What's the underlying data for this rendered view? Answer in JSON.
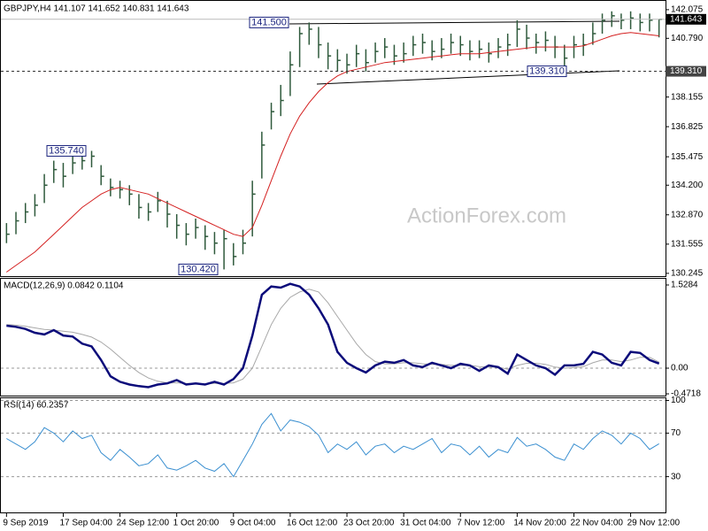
{
  "chart_data": [
    {
      "type": "ohlc",
      "title": "GBPJPY,H4  141.107 141.652 140.831 141.643",
      "watermark": "ActionForex.com",
      "color": "#2f5a3c",
      "high": [
        132.5,
        133.0,
        133.4,
        133.8,
        134.7,
        135.3,
        135.2,
        135.6,
        135.6,
        135.74,
        135.1,
        134.5,
        134.4,
        134.2,
        133.8,
        133.4,
        133.9,
        133.5,
        132.9,
        132.5,
        132.7,
        132.4,
        132.1,
        132.2,
        131.6,
        132.2,
        134.4,
        136.6,
        137.9,
        138.7,
        140.2,
        141.3,
        141.5,
        141.3,
        140.6,
        140.3,
        140.1,
        140.5,
        140.3,
        140.6,
        140.8,
        140.5,
        140.6,
        140.9,
        141.0,
        140.7,
        140.8,
        141.0,
        140.9,
        140.7,
        140.7,
        140.6,
        140.8,
        141.0,
        141.6,
        141.4,
        141.0,
        141.1,
        140.9,
        140.5,
        140.9,
        141.0,
        141.5,
        141.9,
        142.0,
        141.9,
        142.0,
        141.9,
        141.9,
        141.652
      ],
      "low": [
        131.6,
        132.0,
        132.5,
        132.8,
        133.4,
        134.3,
        134.1,
        134.7,
        134.9,
        135.0,
        134.2,
        133.7,
        133.6,
        133.3,
        132.7,
        132.6,
        133.0,
        132.3,
        131.8,
        131.5,
        131.8,
        131.3,
        131.1,
        130.42,
        130.6,
        131.1,
        131.9,
        134.5,
        136.7,
        137.3,
        138.2,
        139.5,
        140.5,
        139.9,
        139.4,
        139.3,
        139.2,
        139.5,
        139.3,
        139.7,
        139.9,
        139.6,
        139.7,
        140.0,
        140.1,
        139.8,
        139.9,
        140.1,
        140.0,
        139.8,
        139.9,
        139.7,
        139.9,
        140.0,
        140.4,
        140.3,
        140.1,
        140.2,
        139.9,
        139.5,
        139.9,
        140.0,
        140.5,
        141.0,
        141.3,
        141.2,
        141.2,
        141.1,
        141.1,
        140.831
      ],
      "close": [
        132.0,
        132.6,
        133.0,
        133.3,
        134.2,
        134.9,
        134.6,
        135.2,
        135.3,
        135.5,
        134.6,
        134.1,
        134.0,
        133.8,
        133.2,
        133.0,
        133.5,
        132.9,
        132.4,
        132.0,
        132.3,
        131.9,
        131.6,
        131.8,
        131.0,
        131.6,
        133.8,
        136.0,
        137.5,
        138.0,
        139.6,
        141.0,
        141.2,
        140.5,
        140.0,
        139.8,
        139.6,
        140.1,
        139.7,
        140.2,
        140.4,
        140.0,
        140.1,
        140.5,
        140.6,
        140.2,
        140.3,
        140.6,
        140.5,
        140.2,
        140.3,
        140.1,
        140.4,
        140.5,
        141.2,
        140.8,
        140.6,
        140.7,
        140.4,
        139.9,
        140.5,
        140.5,
        141.0,
        141.6,
        141.8,
        141.6,
        141.7,
        141.5,
        141.6,
        141.643
      ],
      "overlay": {
        "color": "#d42020",
        "values": [
          130.3,
          130.6,
          130.9,
          131.2,
          131.6,
          132.0,
          132.4,
          132.8,
          133.2,
          133.5,
          133.8,
          134.0,
          134.1,
          134.0,
          133.9,
          133.8,
          133.6,
          133.4,
          133.2,
          133.0,
          132.8,
          132.6,
          132.4,
          132.2,
          132.0,
          131.9,
          132.3,
          133.3,
          134.4,
          135.5,
          136.5,
          137.3,
          137.9,
          138.4,
          138.8,
          139.1,
          139.3,
          139.4,
          139.5,
          139.6,
          139.7,
          139.75,
          139.8,
          139.85,
          139.9,
          139.95,
          140.0,
          140.05,
          140.1,
          140.1,
          140.1,
          140.15,
          140.2,
          140.25,
          140.3,
          140.35,
          140.4,
          140.4,
          140.4,
          140.4,
          140.4,
          140.45,
          140.6,
          140.75,
          140.9,
          141.0,
          141.05,
          141.0,
          140.95,
          140.9
        ]
      },
      "ylim": [
        130.12,
        142.35
      ],
      "yticks": [
        142.075,
        {
          "value": 140.79,
          "label": "140.790"
        },
        138.155,
        136.825,
        135.475,
        {
          "value": 134.2,
          "label": "134.200"
        },
        {
          "value": 132.87,
          "label": "132.870"
        },
        131.555,
        130.245
      ],
      "current": {
        "value": 141.643,
        "label": "141.643"
      },
      "levels": [
        {
          "value": 139.31,
          "label": "139.310"
        }
      ],
      "annotations": [
        {
          "value": 141.5,
          "label": "141.500"
        },
        {
          "value": 135.74,
          "label": "135.740"
        },
        {
          "value": 130.42,
          "label": "130.420"
        },
        {
          "value": 139.31,
          "label": "139.310"
        }
      ]
    },
    {
      "type": "line",
      "title": "MACD(12,26,9) 0.0842 0.1104",
      "series": [
        {
          "color": "#0b0b7a",
          "values": [
            0.78,
            0.76,
            0.72,
            0.65,
            0.62,
            0.7,
            0.6,
            0.58,
            0.45,
            0.4,
            0.15,
            -0.15,
            -0.25,
            -0.3,
            -0.33,
            -0.35,
            -0.3,
            -0.28,
            -0.22,
            -0.3,
            -0.28,
            -0.3,
            -0.25,
            -0.3,
            -0.2,
            0.0,
            0.6,
            1.35,
            1.5,
            1.48,
            1.55,
            1.5,
            1.35,
            1.1,
            0.8,
            0.3,
            0.1,
            0.0,
            -0.08,
            0.05,
            0.12,
            0.1,
            0.15,
            0.05,
            0.02,
            0.1,
            0.05,
            0.0,
            0.08,
            0.05,
            -0.05,
            0.05,
            0.02,
            -0.1,
            0.25,
            0.15,
            0.05,
            0.0,
            -0.12,
            0.05,
            0.05,
            0.08,
            0.3,
            0.25,
            0.1,
            0.05,
            0.3,
            0.28,
            0.15,
            0.0842
          ]
        },
        {
          "color": "#a8a8a8",
          "values": [
            0.8,
            0.79,
            0.77,
            0.74,
            0.71,
            0.7,
            0.68,
            0.66,
            0.62,
            0.57,
            0.48,
            0.35,
            0.2,
            0.05,
            -0.08,
            -0.18,
            -0.24,
            -0.27,
            -0.27,
            -0.28,
            -0.28,
            -0.29,
            -0.28,
            -0.28,
            -0.27,
            -0.2,
            0.0,
            0.4,
            0.8,
            1.1,
            1.3,
            1.4,
            1.45,
            1.4,
            1.2,
            0.95,
            0.7,
            0.45,
            0.25,
            0.12,
            0.08,
            0.08,
            0.1,
            0.1,
            0.08,
            0.07,
            0.07,
            0.05,
            0.05,
            0.05,
            0.03,
            0.02,
            0.02,
            -0.02,
            0.05,
            0.09,
            0.09,
            0.07,
            0.02,
            0.0,
            0.01,
            0.03,
            0.1,
            0.15,
            0.15,
            0.12,
            0.15,
            0.2,
            0.2,
            0.1104
          ]
        }
      ],
      "ylim": [
        -0.504,
        1.626
      ],
      "yticks": [
        1.5284,
        {
          "value": 0,
          "label": "0.00"
        },
        -0.4718
      ],
      "zero_line": true
    },
    {
      "type": "line",
      "title": "RSI(14) 60.2357",
      "series": [
        {
          "color": "#3a8fd0",
          "values": [
            65,
            60,
            55,
            62,
            75,
            70,
            62,
            72,
            65,
            68,
            52,
            45,
            55,
            48,
            40,
            42,
            50,
            38,
            36,
            40,
            45,
            38,
            35,
            42,
            30,
            45,
            60,
            78,
            88,
            72,
            82,
            80,
            76,
            68,
            52,
            60,
            55,
            62,
            50,
            58,
            60,
            52,
            58,
            55,
            60,
            65,
            52,
            60,
            58,
            50,
            58,
            48,
            55,
            52,
            66,
            58,
            60,
            55,
            48,
            45,
            60,
            55,
            65,
            72,
            68,
            60,
            70,
            65,
            55,
            60.2357
          ]
        }
      ],
      "ylim": [
        -2,
        102
      ],
      "yticks": [
        100,
        70,
        30
      ],
      "grid": true,
      "categories": [
        "9 Sep 2019",
        null,
        null,
        null,
        null,
        null,
        "17 Sep 04:00",
        null,
        null,
        null,
        null,
        null,
        "24 Sep 12:00",
        null,
        null,
        null,
        null,
        null,
        "1 Oct 20:00",
        null,
        null,
        null,
        null,
        null,
        "9 Oct 04:00",
        null,
        null,
        null,
        null,
        null,
        "16 Oct 12:00",
        null,
        null,
        null,
        null,
        null,
        "23 Oct 20:00",
        null,
        null,
        null,
        null,
        null,
        "31 Oct 04:00",
        null,
        null,
        null,
        null,
        null,
        "7 Nov 12:00",
        null,
        null,
        null,
        null,
        null,
        "14 Nov 20:00",
        null,
        null,
        null,
        null,
        null,
        "22 Nov 04:00",
        null,
        null,
        null,
        null,
        null,
        "29 Nov 12:00",
        null,
        null,
        null
      ]
    }
  ]
}
